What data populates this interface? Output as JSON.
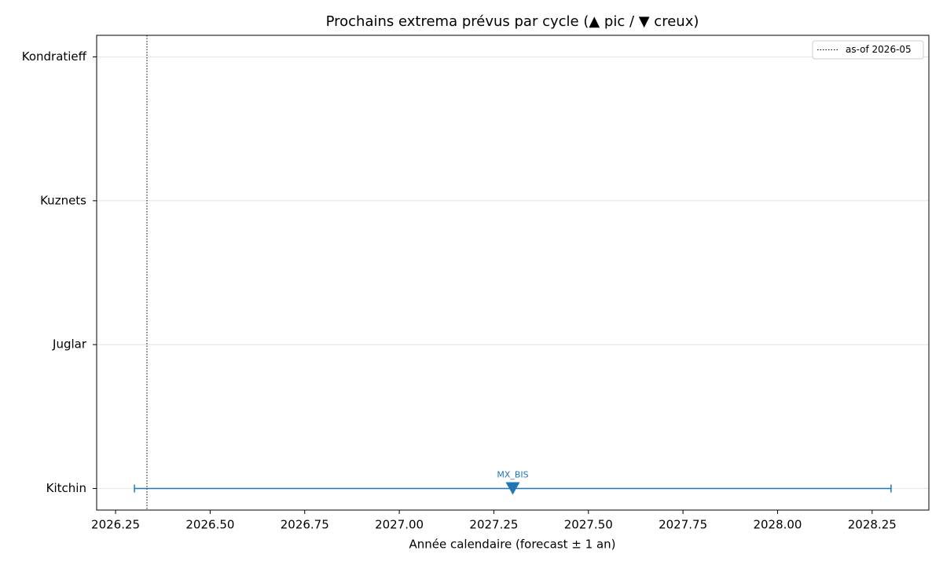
{
  "chart_data": {
    "type": "errorbar",
    "title": "Prochains extrema prévus par cycle (▲ pic / ▼ creux)",
    "x_label": "Année calendaire (forecast ± 1 an)",
    "categories": [
      "Kitchin",
      "Juglar",
      "Kuznets",
      "Kondratieff"
    ],
    "series": [
      {
        "color": "#1f77b4",
        "values": [
          2027.3,
          null,
          null,
          null
        ],
        "errors": [
          1,
          null,
          null,
          null
        ],
        "kinds": [
          "trough",
          null,
          null,
          null
        ],
        "annotations": [
          "MX_BIS",
          null,
          null,
          null
        ]
      }
    ],
    "vlines": [
      {
        "x": 2026.333,
        "label": "as-of 2026-05",
        "color": "#000000",
        "style": "dotted"
      }
    ],
    "xlim": [
      2026.2,
      2028.4
    ],
    "xticks": [
      2026.25,
      {
        "value": 2026.5,
        "label": "2026.50"
      },
      2026.75,
      {
        "value": 2027.0,
        "label": "2027.00"
      },
      2027.25,
      {
        "value": 2027.5,
        "label": "2027.50"
      },
      2027.75,
      {
        "value": 2028.0,
        "label": "2028.00"
      },
      2028.25
    ],
    "ylim": [
      -0.15,
      3.15
    ],
    "grid": "y",
    "legend": "upper right"
  }
}
